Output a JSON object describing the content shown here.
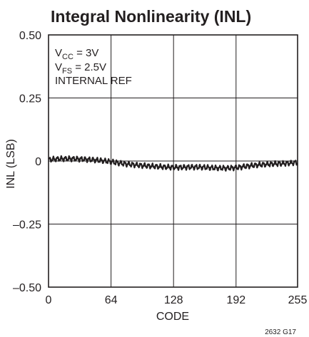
{
  "chart_data": {
    "type": "line",
    "title": "Integral Nonlinearity (INL)",
    "xlabel": "CODE",
    "ylabel": "INL (LSB)",
    "xlim": [
      0,
      255
    ],
    "ylim": [
      -0.5,
      0.5
    ],
    "x_ticks": [
      "0",
      "64",
      "128",
      "192",
      "255"
    ],
    "y_ticks": [
      "0.50",
      "0.25",
      "0",
      "–0.25",
      "–0.50"
    ],
    "grid": true,
    "annotations": {
      "vcc_label": "V",
      "vcc_sub": "CC",
      "vcc_value": " = 3V",
      "vfs_label": "V",
      "vfs_sub": "FS",
      "vfs_value": " = 2.5V",
      "ref": "INTERNAL REF"
    },
    "figure_id": "2632 G17",
    "series": [
      {
        "x": [
          0,
          8,
          16,
          24,
          32,
          40,
          48,
          56,
          64,
          72,
          80,
          88,
          96,
          104,
          112,
          120,
          128,
          136,
          144,
          152,
          160,
          168,
          176,
          184,
          192,
          200,
          208,
          216,
          224,
          232,
          240,
          248,
          255
        ],
        "values": [
          0.005,
          0.008,
          0.009,
          0.009,
          0.008,
          0.006,
          0.004,
          0.001,
          -0.003,
          -0.008,
          -0.012,
          -0.015,
          -0.018,
          -0.02,
          -0.022,
          -0.024,
          -0.025,
          -0.025,
          -0.024,
          -0.024,
          -0.025,
          -0.027,
          -0.028,
          -0.028,
          -0.026,
          -0.022,
          -0.018,
          -0.015,
          -0.013,
          -0.011,
          -0.01,
          -0.008,
          -0.005
        ]
      }
    ]
  }
}
